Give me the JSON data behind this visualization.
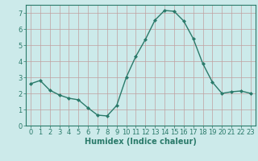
{
  "x": [
    0,
    1,
    2,
    3,
    4,
    5,
    6,
    7,
    8,
    9,
    10,
    11,
    12,
    13,
    14,
    15,
    16,
    17,
    18,
    19,
    20,
    21,
    22,
    23
  ],
  "y": [
    2.6,
    2.8,
    2.2,
    1.9,
    1.7,
    1.6,
    1.1,
    0.65,
    0.6,
    1.25,
    3.0,
    4.3,
    5.35,
    6.55,
    7.15,
    7.1,
    6.5,
    5.4,
    3.85,
    2.7,
    2.0,
    2.1,
    2.15,
    2.0
  ],
  "line_color": "#2a7a6a",
  "marker": "D",
  "marker_size": 2,
  "bg_color": "#cceaea",
  "grid_color": "#c0a0a0",
  "xlabel": "Humidex (Indice chaleur)",
  "xlabel_fontsize": 7,
  "xlim": [
    -0.5,
    23.5
  ],
  "ylim": [
    0,
    7.5
  ],
  "yticks": [
    0,
    1,
    2,
    3,
    4,
    5,
    6,
    7
  ],
  "xticks": [
    0,
    1,
    2,
    3,
    4,
    5,
    6,
    7,
    8,
    9,
    10,
    11,
    12,
    13,
    14,
    15,
    16,
    17,
    18,
    19,
    20,
    21,
    22,
    23
  ],
  "tick_fontsize": 6,
  "linewidth": 1.0
}
